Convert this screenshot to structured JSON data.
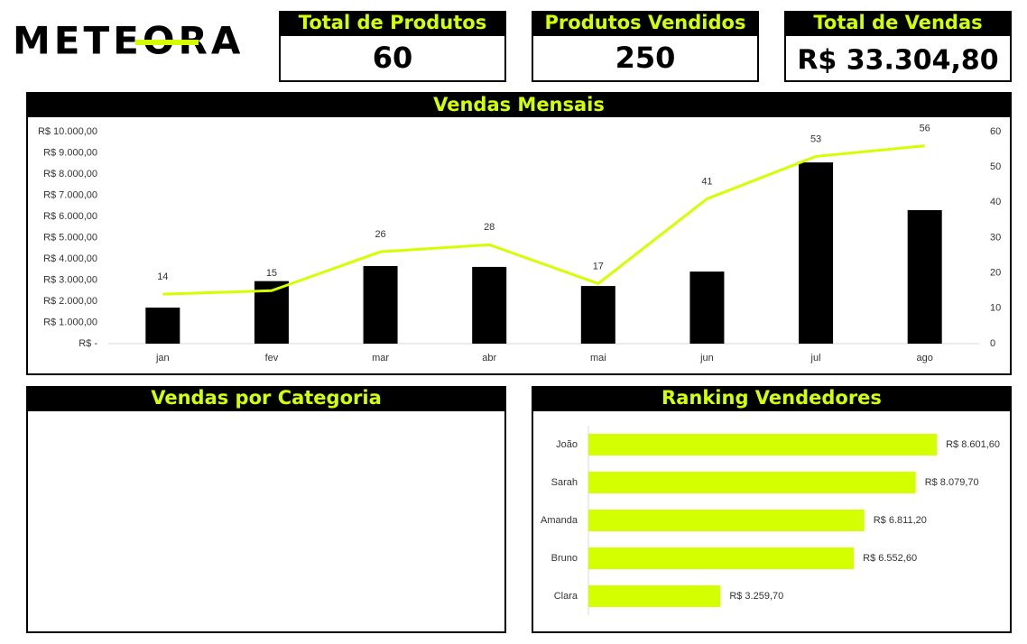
{
  "logo": "METEORA",
  "kpis": [
    {
      "title": "Total de Produtos",
      "value": "60"
    },
    {
      "title": "Produtos Vendidos",
      "value": "250"
    },
    {
      "title": "Total de Vendas",
      "value": "R$ 33.304,80"
    }
  ],
  "category_panel": {
    "title": "Vendas por Categoria"
  },
  "chart_data": [
    {
      "type": "combo",
      "title": "Vendas Mensais",
      "categories": [
        "jan",
        "fev",
        "mar",
        "abr",
        "mai",
        "jun",
        "jul",
        "ago"
      ],
      "series": [
        {
          "color": "#000000",
          "kind": "bar",
          "values": [
            1700,
            2950,
            3660,
            3620,
            2720,
            3400,
            8550,
            6300
          ]
        },
        {
          "color": "#d4ff00",
          "kind": "line",
          "axis": "y2",
          "values": [
            14,
            15,
            26,
            28,
            17,
            41,
            53,
            56
          ]
        }
      ],
      "ylim": [
        0,
        10000
      ],
      "yticks": [
        {
          "value": 0,
          "label": "R$ -"
        },
        {
          "value": 1000,
          "label": "R$ 1.000,00"
        },
        {
          "value": 2000,
          "label": "R$ 2.000,00"
        },
        {
          "value": 3000,
          "label": "R$ 3.000,00"
        },
        {
          "value": 4000,
          "label": "R$ 4.000,00"
        },
        {
          "value": 5000,
          "label": "R$ 5.000,00"
        },
        {
          "value": 6000,
          "label": "R$ 6.000,00"
        },
        {
          "value": 7000,
          "label": "R$ 7.000,00"
        },
        {
          "value": 8000,
          "label": "R$ 8.000,00"
        },
        {
          "value": 9000,
          "label": "R$ 9.000,00"
        },
        {
          "value": 10000,
          "label": "R$ 10.000,00"
        }
      ],
      "y2lim": [
        0,
        60
      ],
      "y2ticks": [
        0,
        10,
        20,
        30,
        40,
        50,
        60
      ]
    },
    {
      "type": "hbar",
      "title": "Ranking Vendedores",
      "categories": [
        "João",
        "Sarah",
        "Amanda",
        "Bruno",
        "Clara"
      ],
      "values": [
        8601.6,
        8079.7,
        6811.2,
        6552.6,
        3259.7
      ],
      "value_labels": [
        "R$ 8.601,60",
        "R$ 8.079,70",
        "R$ 6.811,20",
        "R$ 6.552,60",
        "R$ 3.259,70"
      ],
      "color": "#d4ff00",
      "xlim": [
        0,
        9000
      ]
    }
  ]
}
